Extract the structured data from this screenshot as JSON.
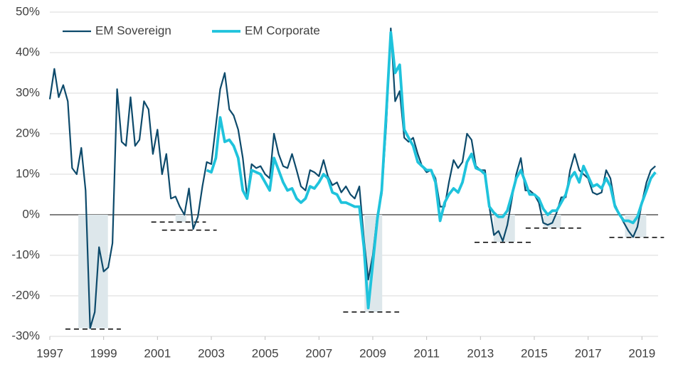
{
  "chart_data": {
    "type": "line",
    "x": [
      1997,
      1997.17,
      1997.33,
      1997.5,
      1997.67,
      1997.83,
      1998,
      1998.17,
      1998.33,
      1998.5,
      1998.67,
      1998.83,
      1999,
      1999.17,
      1999.33,
      1999.5,
      1999.67,
      1999.83,
      2000,
      2000.17,
      2000.33,
      2000.5,
      2000.67,
      2000.83,
      2001,
      2001.17,
      2001.33,
      2001.5,
      2001.67,
      2001.83,
      2002,
      2002.17,
      2002.33,
      2002.5,
      2002.67,
      2002.83,
      2003,
      2003.17,
      2003.33,
      2003.5,
      2003.67,
      2003.83,
      2004,
      2004.17,
      2004.33,
      2004.5,
      2004.67,
      2004.83,
      2005,
      2005.17,
      2005.33,
      2005.5,
      2005.67,
      2005.83,
      2006,
      2006.17,
      2006.33,
      2006.5,
      2006.67,
      2006.83,
      2007,
      2007.17,
      2007.33,
      2007.5,
      2007.67,
      2007.83,
      2008,
      2008.17,
      2008.33,
      2008.5,
      2008.67,
      2008.83,
      2009,
      2009.17,
      2009.33,
      2009.5,
      2009.67,
      2009.83,
      2010,
      2010.17,
      2010.33,
      2010.5,
      2010.67,
      2010.83,
      2011,
      2011.17,
      2011.33,
      2011.5,
      2011.67,
      2011.83,
      2012,
      2012.17,
      2012.33,
      2012.5,
      2012.67,
      2012.83,
      2013,
      2013.17,
      2013.33,
      2013.5,
      2013.67,
      2013.83,
      2014,
      2014.17,
      2014.33,
      2014.5,
      2014.67,
      2014.83,
      2015,
      2015.17,
      2015.33,
      2015.5,
      2015.67,
      2015.83,
      2016,
      2016.17,
      2016.33,
      2016.5,
      2016.67,
      2016.83,
      2017,
      2017.17,
      2017.33,
      2017.5,
      2017.67,
      2017.83,
      2018,
      2018.17,
      2018.33,
      2018.5,
      2018.67,
      2018.83,
      2019,
      2019.17,
      2019.33,
      2019.5
    ],
    "series": [
      {
        "name": "EM Sovereign",
        "color": "#0d4a6b",
        "values": [
          28.5,
          36,
          29,
          32,
          28,
          11.5,
          10,
          16.5,
          6,
          -28,
          -24,
          -8,
          -14,
          -13,
          -7,
          31,
          18,
          17,
          29,
          17,
          18.5,
          28,
          26,
          15,
          21,
          10,
          15,
          4,
          4.5,
          2,
          0,
          6.5,
          -3.5,
          -0.5,
          7,
          13,
          12.5,
          22,
          31,
          35,
          26,
          24.5,
          21,
          14,
          4.5,
          12.5,
          11.5,
          12,
          10,
          9,
          20,
          15,
          12,
          11.5,
          15,
          11,
          7,
          6,
          11,
          10.5,
          9.5,
          13.5,
          9.5,
          7.3,
          8,
          5.5,
          7,
          5,
          4,
          7,
          -6,
          -16,
          -10,
          0,
          5,
          22,
          46,
          28,
          30.5,
          19,
          18,
          19,
          15,
          12,
          10.5,
          11,
          9,
          2,
          2,
          8,
          13.5,
          11.5,
          13,
          20,
          18.5,
          12,
          11,
          11,
          2,
          -5,
          -4,
          -6.5,
          -2.5,
          4,
          10,
          14,
          6,
          6,
          5,
          3,
          -2,
          -2.5,
          -2,
          0.5,
          4.3,
          4.3,
          11,
          15,
          11,
          10,
          9,
          5.5,
          5,
          5.5,
          11,
          9,
          2.5,
          0,
          -2,
          -4,
          -5.5,
          -3,
          3,
          8,
          11,
          12
        ]
      },
      {
        "name": "EM Corporate",
        "color": "#1fc3dc",
        "values": [
          null,
          null,
          null,
          null,
          null,
          null,
          null,
          null,
          null,
          null,
          null,
          null,
          null,
          null,
          null,
          null,
          null,
          null,
          null,
          null,
          null,
          null,
          null,
          null,
          null,
          null,
          null,
          null,
          null,
          null,
          null,
          null,
          null,
          null,
          null,
          11,
          10.5,
          14,
          24,
          18,
          18.5,
          17,
          14,
          6,
          4,
          11,
          10.5,
          10,
          8,
          6,
          14,
          11,
          8,
          6,
          6.5,
          4,
          3,
          4,
          7,
          6.5,
          8,
          10,
          9,
          5.5,
          5,
          3,
          3,
          2.5,
          2,
          2,
          -8,
          -23,
          -12,
          -1,
          6,
          25,
          45,
          35,
          37,
          21,
          19,
          17,
          13,
          12,
          11,
          11,
          8,
          -1.5,
          3,
          5,
          6.5,
          5.5,
          8,
          13,
          15,
          11.5,
          11,
          10,
          2,
          0.5,
          -0.5,
          -0.5,
          1,
          5,
          9,
          11,
          8,
          5,
          5,
          4,
          1.5,
          0,
          1,
          1,
          3,
          5,
          9,
          10.5,
          8,
          12,
          9.5,
          7,
          7.5,
          6.5,
          9,
          7,
          2,
          0,
          -1.5,
          -1.5,
          -2,
          -0.5,
          3,
          6,
          9,
          10.5
        ]
      }
    ],
    "xlim": [
      1997,
      2019.6
    ],
    "xticks": [
      1997,
      1999,
      2001,
      2003,
      2005,
      2007,
      2009,
      2011,
      2013,
      2015,
      2017,
      2019
    ],
    "ylim": [
      -30,
      50
    ],
    "yticks": [
      {
        "value": -30,
        "label": "-30%"
      },
      {
        "value": -20,
        "label": "-20%"
      },
      {
        "value": -10,
        "label": "-10%"
      },
      {
        "value": 0,
        "label": "0%"
      },
      {
        "value": 10,
        "label": "10%"
      },
      {
        "value": 20,
        "label": "20%"
      },
      {
        "value": 30,
        "label": "30%"
      },
      {
        "value": 40,
        "label": "40%"
      },
      {
        "value": 50,
        "label": "50%"
      }
    ],
    "grid": true,
    "legend": "top-left",
    "shaded_periods": [
      {
        "start": 1998.06,
        "end": 1999.16,
        "level": -28
      },
      {
        "start": 2001.67,
        "end": 2002.07,
        "level": -1.8
      },
      {
        "start": 2008.69,
        "end": 2009.35,
        "level": -24
      },
      {
        "start": 2013.49,
        "end": 2014.28,
        "level": -6.8
      },
      {
        "start": 2015.34,
        "end": 2015.99,
        "level": -3.3
      },
      {
        "start": 2018.37,
        "end": 2019.16,
        "level": -5.6
      }
    ],
    "shade_color": "#dde7eb",
    "dashed_lines": [
      {
        "start": 1997.58,
        "end": 1999.64,
        "level": -28.2
      },
      {
        "start": 2000.77,
        "end": 2002.8,
        "level": -1.8
      },
      {
        "start": 2001.17,
        "end": 2003.2,
        "level": -3.8
      },
      {
        "start": 2007.9,
        "end": 2009.98,
        "level": -24
      },
      {
        "start": 2012.78,
        "end": 2014.89,
        "level": -6.8
      },
      {
        "start": 2014.68,
        "end": 2016.74,
        "level": -3.3
      },
      {
        "start": 2017.79,
        "end": 2019.82,
        "level": -5.6
      }
    ]
  }
}
